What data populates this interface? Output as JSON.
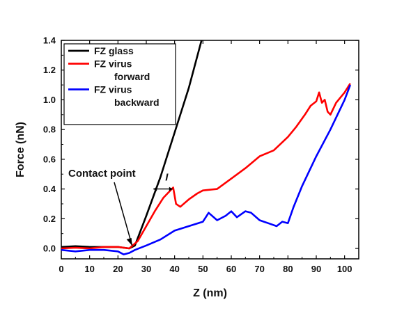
{
  "chart_data": {
    "type": "line",
    "title": "",
    "xlabel": "Z (nm)",
    "ylabel": "Force (nN)",
    "xlim": [
      0,
      105
    ],
    "ylim": [
      -0.07,
      1.4
    ],
    "xticks": [
      "0",
      "10",
      "20",
      "30",
      "40",
      "50",
      "60",
      "70",
      "80",
      "90",
      "100"
    ],
    "yticks": [
      "0.0",
      "0.2",
      "0.4",
      "0.6",
      "0.8",
      "1.0",
      "1.2",
      "1.4"
    ],
    "grid": false,
    "legend_position": "top-left",
    "series": [
      {
        "name": "FZ glass",
        "legend_lines": [
          "FZ glass"
        ],
        "color": "#000000",
        "x": [
          0,
          5,
          10,
          15,
          20,
          24,
          26,
          30,
          35,
          40,
          45,
          49.5
        ],
        "y": [
          0.01,
          0.015,
          0.01,
          0.01,
          0.01,
          0.0,
          0.02,
          0.22,
          0.48,
          0.78,
          1.08,
          1.4
        ]
      },
      {
        "name": "FZ virus forward",
        "legend_lines": [
          "FZ virus",
          "forward"
        ],
        "color": "#ff0000",
        "x": [
          0,
          5,
          10,
          15,
          20,
          24,
          27,
          30,
          33,
          36,
          38,
          39.5,
          40.5,
          42,
          45,
          48,
          50,
          55,
          60,
          65,
          70,
          75,
          80,
          83,
          86,
          88,
          90,
          91,
          92,
          93,
          94,
          95,
          97,
          100,
          102
        ],
        "y": [
          0.0,
          0.005,
          0.0,
          0.01,
          0.01,
          0.0,
          0.05,
          0.15,
          0.25,
          0.34,
          0.38,
          0.41,
          0.3,
          0.28,
          0.33,
          0.37,
          0.39,
          0.4,
          0.47,
          0.54,
          0.62,
          0.66,
          0.75,
          0.82,
          0.9,
          0.96,
          0.99,
          1.05,
          0.98,
          1.0,
          0.92,
          0.9,
          0.98,
          1.05,
          1.11
        ]
      },
      {
        "name": "FZ virus backward",
        "legend_lines": [
          "FZ virus",
          "backward"
        ],
        "color": "#0000ff",
        "x": [
          0,
          5,
          10,
          15,
          20,
          22,
          24,
          26,
          30,
          35,
          40,
          45,
          50,
          52,
          55,
          58,
          60,
          62,
          65,
          67,
          70,
          73,
          76,
          78,
          80,
          82,
          85,
          90,
          95,
          100,
          102
        ],
        "y": [
          -0.01,
          -0.02,
          -0.01,
          -0.01,
          -0.02,
          -0.04,
          -0.03,
          -0.01,
          0.02,
          0.06,
          0.12,
          0.15,
          0.18,
          0.24,
          0.19,
          0.22,
          0.25,
          0.21,
          0.25,
          0.24,
          0.19,
          0.17,
          0.15,
          0.18,
          0.17,
          0.28,
          0.42,
          0.62,
          0.8,
          1.0,
          1.1
        ]
      }
    ],
    "annotations": [
      {
        "text": "Contact point",
        "x": 25,
        "y": 0.0
      },
      {
        "text": "I",
        "x": 38,
        "y": 0.42
      }
    ]
  }
}
